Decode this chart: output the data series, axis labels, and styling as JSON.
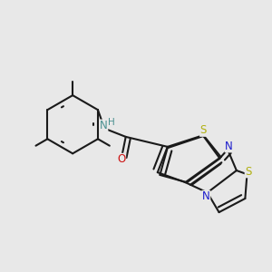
{
  "background_color": "#e8e8e8",
  "bond_color": "#1a1a1a",
  "bond_width": 1.5,
  "atom_colors": {
    "N_amide": "#4a9090",
    "H_amide": "#4a9090",
    "N_ring": "#1c1ccc",
    "S": "#b0b010",
    "O": "#cc1010"
  },
  "font_size": 8.5,
  "xlim": [
    0.0,
    1.0
  ],
  "ylim": [
    0.0,
    1.0
  ]
}
